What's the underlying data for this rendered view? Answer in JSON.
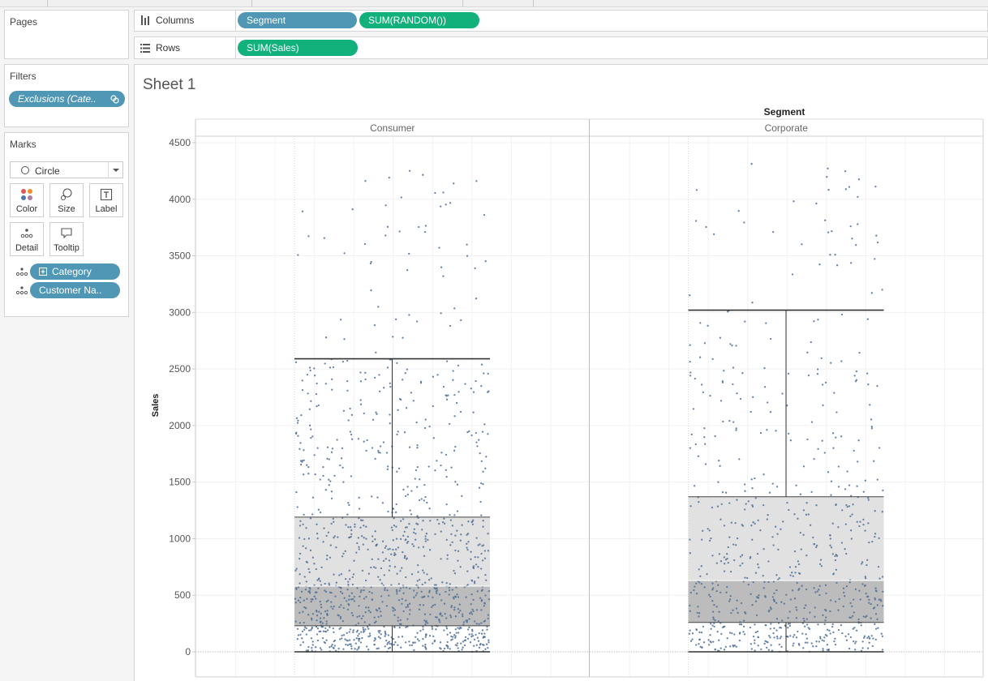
{
  "left_panel": {
    "pages": {
      "title": "Pages"
    },
    "filters": {
      "title": "Filters",
      "items": [
        {
          "label": "Exclusions (Cate.."
        }
      ]
    },
    "marks": {
      "title": "Marks",
      "mark_type": "Circle",
      "buttons": {
        "color": "Color",
        "size": "Size",
        "label": "Label",
        "detail": "Detail",
        "tooltip": "Tooltip"
      },
      "fields": [
        {
          "label": "Category"
        },
        {
          "label": "Customer Na.."
        }
      ]
    }
  },
  "shelves": {
    "columns": {
      "label": "Columns",
      "pills": [
        "Segment",
        "SUM(RANDOM())"
      ]
    },
    "rows": {
      "label": "Rows",
      "pills": [
        "SUM(Sales)"
      ]
    }
  },
  "sheet": {
    "title": "Sheet 1"
  },
  "colors": {
    "blue_pill": "#4f97b5",
    "green_pill": "#12b07b",
    "dot": "#4e6f97",
    "box_upper": "#e1e1e1",
    "box_lower": "#bcbcbc"
  },
  "chart_data": {
    "type": "scatter",
    "subtype": "jitter strip with box plot",
    "column_header_title": "Segment",
    "ylabel": "Sales",
    "ylim": [
      -80,
      4650
    ],
    "yticks": [
      0,
      500,
      1000,
      1500,
      2000,
      2500,
      3000,
      3500,
      4000,
      4500
    ],
    "panels": [
      {
        "name": "Consumer",
        "box": {
          "lower_whisker": 0,
          "q1": 230,
          "median": 580,
          "q3": 1190,
          "upper_whisker": 2590
        },
        "point_count": 1150,
        "sales_max": 4320
      },
      {
        "name": "Corporate",
        "box": {
          "lower_whisker": 0,
          "q1": 260,
          "median": 630,
          "q3": 1370,
          "upper_whisker": 3020
        },
        "point_count": 720,
        "sales_max": 4330
      }
    ]
  }
}
